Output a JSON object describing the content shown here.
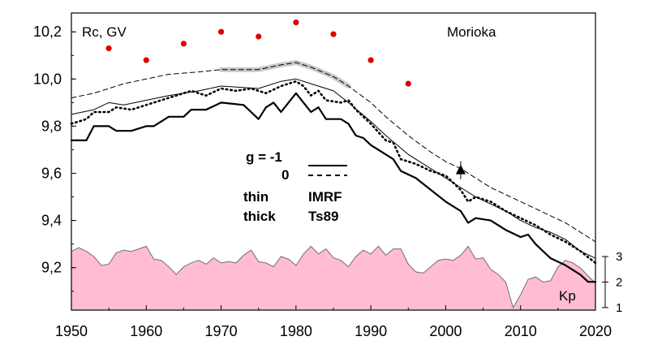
{
  "chart_data": {
    "type": "line",
    "title": "Morioka",
    "ylabel": "Rc, GV",
    "xlabel": "",
    "xlim": [
      1950,
      2020
    ],
    "ylim": [
      9.02,
      10.28
    ],
    "x_ticks": [
      1950,
      1960,
      1970,
      1980,
      1990,
      2000,
      2010,
      2020
    ],
    "y_ticks": [
      9.2,
      9.4,
      9.6,
      9.8,
      10.0,
      10.2
    ],
    "y_tick_labels": [
      "9,2",
      "9,4",
      "9,6",
      "9,8",
      "10,0",
      "10,2"
    ],
    "grid": false,
    "legend": {
      "rows": [
        {
          "left": "g  = -1",
          "right": ""
        },
        {
          "left": "0",
          "right": ""
        },
        {
          "left": "thin",
          "right": "IMRF"
        },
        {
          "left": "thick",
          "right": "Ts89"
        }
      ]
    },
    "series": [
      {
        "style": "thick-solid",
        "color": "#000000",
        "points": [
          [
            1950,
            9.74
          ],
          [
            1952,
            9.74
          ],
          [
            1953,
            9.8
          ],
          [
            1955,
            9.8
          ],
          [
            1956,
            9.78
          ],
          [
            1958,
            9.78
          ],
          [
            1960,
            9.8
          ],
          [
            1961,
            9.8
          ],
          [
            1963,
            9.84
          ],
          [
            1965,
            9.84
          ],
          [
            1966,
            9.87
          ],
          [
            1968,
            9.87
          ],
          [
            1970,
            9.9
          ],
          [
            1973,
            9.89
          ],
          [
            1975,
            9.83
          ],
          [
            1976,
            9.88
          ],
          [
            1977,
            9.9
          ],
          [
            1978,
            9.86
          ],
          [
            1980,
            9.94
          ],
          [
            1981,
            9.9
          ],
          [
            1982,
            9.86
          ],
          [
            1983,
            9.88
          ],
          [
            1984,
            9.83
          ],
          [
            1986,
            9.83
          ],
          [
            1987,
            9.81
          ],
          [
            1988,
            9.76
          ],
          [
            1989,
            9.75
          ],
          [
            1990,
            9.72
          ],
          [
            1992,
            9.68
          ],
          [
            1993,
            9.66
          ],
          [
            1994,
            9.61
          ],
          [
            1996,
            9.58
          ],
          [
            1998,
            9.53
          ],
          [
            2000,
            9.48
          ],
          [
            2002,
            9.44
          ],
          [
            2003,
            9.39
          ],
          [
            2004,
            9.41
          ],
          [
            2006,
            9.4
          ],
          [
            2008,
            9.36
          ],
          [
            2010,
            9.33
          ],
          [
            2011,
            9.34
          ],
          [
            2012,
            9.3
          ],
          [
            2013,
            9.27
          ],
          [
            2014,
            9.24
          ],
          [
            2016,
            9.21
          ],
          [
            2018,
            9.17
          ],
          [
            2019,
            9.14
          ],
          [
            2020,
            9.14
          ]
        ]
      },
      {
        "style": "thin-solid",
        "color": "#000000",
        "points": [
          [
            1950,
            9.85
          ],
          [
            1953,
            9.87
          ],
          [
            1955,
            9.9
          ],
          [
            1957,
            9.89
          ],
          [
            1960,
            9.91
          ],
          [
            1963,
            9.93
          ],
          [
            1967,
            9.95
          ],
          [
            1970,
            9.97
          ],
          [
            1975,
            9.96
          ],
          [
            1978,
            9.99
          ],
          [
            1980,
            10.0
          ],
          [
            1982,
            9.98
          ],
          [
            1985,
            9.95
          ],
          [
            1987,
            9.9
          ],
          [
            1990,
            9.82
          ],
          [
            1992,
            9.76
          ],
          [
            1995,
            9.68
          ],
          [
            1998,
            9.62
          ],
          [
            2000,
            9.58
          ],
          [
            2002,
            9.54
          ],
          [
            2004,
            9.5
          ],
          [
            2006,
            9.47
          ],
          [
            2008,
            9.44
          ],
          [
            2010,
            9.4
          ],
          [
            2012,
            9.37
          ],
          [
            2014,
            9.35
          ],
          [
            2016,
            9.32
          ],
          [
            2018,
            9.27
          ],
          [
            2020,
            9.24
          ]
        ]
      },
      {
        "style": "thick-dotted",
        "color": "#000000",
        "points": [
          [
            1950,
            9.81
          ],
          [
            1952,
            9.83
          ],
          [
            1953,
            9.86
          ],
          [
            1955,
            9.86
          ],
          [
            1956,
            9.88
          ],
          [
            1958,
            9.87
          ],
          [
            1960,
            9.89
          ],
          [
            1962,
            9.91
          ],
          [
            1964,
            9.93
          ],
          [
            1966,
            9.95
          ],
          [
            1968,
            9.93
          ],
          [
            1970,
            9.96
          ],
          [
            1972,
            9.95
          ],
          [
            1974,
            9.96
          ],
          [
            1976,
            9.94
          ],
          [
            1978,
            9.97
          ],
          [
            1980,
            9.99
          ],
          [
            1981,
            9.97
          ],
          [
            1982,
            9.93
          ],
          [
            1983,
            9.95
          ],
          [
            1984,
            9.91
          ],
          [
            1986,
            9.9
          ],
          [
            1987,
            9.91
          ],
          [
            1988,
            9.87
          ],
          [
            1990,
            9.81
          ],
          [
            1992,
            9.74
          ],
          [
            1993,
            9.73
          ],
          [
            1994,
            9.66
          ],
          [
            1996,
            9.64
          ],
          [
            1998,
            9.61
          ],
          [
            2000,
            9.59
          ],
          [
            2001,
            9.56
          ],
          [
            2002,
            9.53
          ],
          [
            2003,
            9.48
          ],
          [
            2004,
            9.5
          ],
          [
            2006,
            9.48
          ],
          [
            2008,
            9.44
          ],
          [
            2010,
            9.41
          ],
          [
            2012,
            9.38
          ],
          [
            2014,
            9.34
          ],
          [
            2016,
            9.31
          ],
          [
            2018,
            9.27
          ],
          [
            2020,
            9.22
          ]
        ]
      },
      {
        "style": "thin-dashed",
        "color": "#000000",
        "points": [
          [
            1950,
            9.92
          ],
          [
            1953,
            9.94
          ],
          [
            1955,
            9.96
          ],
          [
            1957,
            9.98
          ],
          [
            1960,
            10.0
          ],
          [
            1963,
            10.02
          ],
          [
            1967,
            10.03
          ],
          [
            1970,
            10.04
          ],
          [
            1975,
            10.04
          ],
          [
            1978,
            10.06
          ],
          [
            1980,
            10.07
          ],
          [
            1982,
            10.05
          ],
          [
            1985,
            10.01
          ],
          [
            1987,
            9.97
          ],
          [
            1990,
            9.9
          ],
          [
            1992,
            9.84
          ],
          [
            1995,
            9.76
          ],
          [
            1998,
            9.69
          ],
          [
            2000,
            9.65
          ],
          [
            2002,
            9.62
          ],
          [
            2004,
            9.58
          ],
          [
            2006,
            9.54
          ],
          [
            2008,
            9.51
          ],
          [
            2010,
            9.48
          ],
          [
            2012,
            9.45
          ],
          [
            2014,
            9.42
          ],
          [
            2016,
            9.39
          ],
          [
            2018,
            9.35
          ],
          [
            2020,
            9.31
          ]
        ]
      },
      {
        "style": "gray-highlight",
        "color": "#bfbfbf",
        "points": [
          [
            1970,
            10.04
          ],
          [
            1975,
            10.04
          ],
          [
            1978,
            10.06
          ],
          [
            1980,
            10.07
          ],
          [
            1982,
            10.05
          ],
          [
            1985,
            10.01
          ],
          [
            1987,
            9.97
          ]
        ]
      }
    ],
    "red_points": {
      "color": "#dd0000",
      "points": [
        [
          1955,
          10.13
        ],
        [
          1960,
          10.08
        ],
        [
          1965,
          10.15
        ],
        [
          1970,
          10.2
        ],
        [
          1975,
          10.18
        ],
        [
          1980,
          10.24
        ],
        [
          1985,
          10.19
        ],
        [
          1990,
          10.08
        ],
        [
          1995,
          9.98
        ]
      ]
    },
    "triangle_point": {
      "x": 2002,
      "y": 9.61,
      "color": "#000000"
    },
    "kp": {
      "label": "Kp",
      "fill": "#ffbcd4",
      "outline": "#707070",
      "ticks": [
        1,
        2,
        3
      ],
      "ylim": [
        0.9,
        3.35
      ],
      "points": [
        [
          1950,
          3.2
        ],
        [
          1951,
          3.35
        ],
        [
          1952,
          3.2
        ],
        [
          1953,
          3.0
        ],
        [
          1954,
          2.65
        ],
        [
          1955,
          2.7
        ],
        [
          1956,
          3.15
        ],
        [
          1957,
          3.25
        ],
        [
          1958,
          3.2
        ],
        [
          1959,
          3.3
        ],
        [
          1960,
          3.4
        ],
        [
          1961,
          2.9
        ],
        [
          1962,
          2.85
        ],
        [
          1963,
          2.6
        ],
        [
          1964,
          2.3
        ],
        [
          1965,
          2.6
        ],
        [
          1966,
          2.75
        ],
        [
          1967,
          2.85
        ],
        [
          1968,
          2.7
        ],
        [
          1969,
          2.95
        ],
        [
          1970,
          2.75
        ],
        [
          1971,
          2.8
        ],
        [
          1972,
          2.75
        ],
        [
          1973,
          3.05
        ],
        [
          1974,
          3.25
        ],
        [
          1975,
          2.8
        ],
        [
          1976,
          2.75
        ],
        [
          1977,
          2.6
        ],
        [
          1978,
          3.0
        ],
        [
          1979,
          2.9
        ],
        [
          1980,
          2.65
        ],
        [
          1981,
          3.1
        ],
        [
          1982,
          3.4
        ],
        [
          1983,
          3.1
        ],
        [
          1984,
          3.3
        ],
        [
          1985,
          2.95
        ],
        [
          1986,
          2.85
        ],
        [
          1987,
          2.6
        ],
        [
          1988,
          3.0
        ],
        [
          1989,
          3.25
        ],
        [
          1990,
          3.1
        ],
        [
          1991,
          3.4
        ],
        [
          1992,
          3.05
        ],
        [
          1993,
          3.3
        ],
        [
          1994,
          3.3
        ],
        [
          1995,
          2.7
        ],
        [
          1996,
          2.4
        ],
        [
          1997,
          2.35
        ],
        [
          1998,
          2.6
        ],
        [
          1999,
          2.85
        ],
        [
          2000,
          2.9
        ],
        [
          2001,
          2.85
        ],
        [
          2002,
          3.05
        ],
        [
          2003,
          3.4
        ],
        [
          2004,
          2.9
        ],
        [
          2005,
          2.95
        ],
        [
          2006,
          2.5
        ],
        [
          2007,
          2.3
        ],
        [
          2008,
          2.0
        ],
        [
          2009,
          1.0
        ],
        [
          2010,
          1.5
        ],
        [
          2011,
          2.1
        ],
        [
          2012,
          2.2
        ],
        [
          2013,
          2.0
        ],
        [
          2014,
          2.05
        ],
        [
          2015,
          2.6
        ],
        [
          2016,
          2.85
        ],
        [
          2017,
          2.75
        ],
        [
          2018,
          2.55
        ],
        [
          2019,
          2.25
        ],
        [
          2020,
          1.95
        ]
      ]
    }
  }
}
